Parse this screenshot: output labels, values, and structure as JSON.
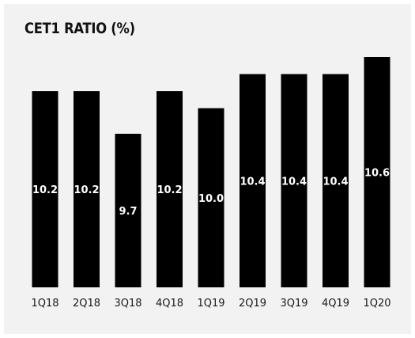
{
  "colors": {
    "panel_background": "#f2f2f2",
    "bar": "#000000",
    "value_label": "#ffffff",
    "text": "#111111"
  },
  "chart_data": {
    "type": "bar",
    "title": "CET1 RATIO (%)",
    "xlabel": "",
    "ylabel": "",
    "categories": [
      "1Q18",
      "2Q18",
      "3Q18",
      "4Q18",
      "1Q19",
      "2Q19",
      "3Q19",
      "4Q19",
      "1Q20"
    ],
    "values": [
      10.2,
      10.2,
      9.7,
      10.2,
      10.0,
      10.4,
      10.4,
      10.4,
      10.6
    ],
    "value_labels": [
      "10.2",
      "10.2",
      "9.7",
      "10.2",
      "10.0",
      "10.4",
      "10.4",
      "10.4",
      "10.6"
    ],
    "ylim": [
      7.9,
      10.6
    ],
    "grid": false,
    "legend": "none"
  }
}
